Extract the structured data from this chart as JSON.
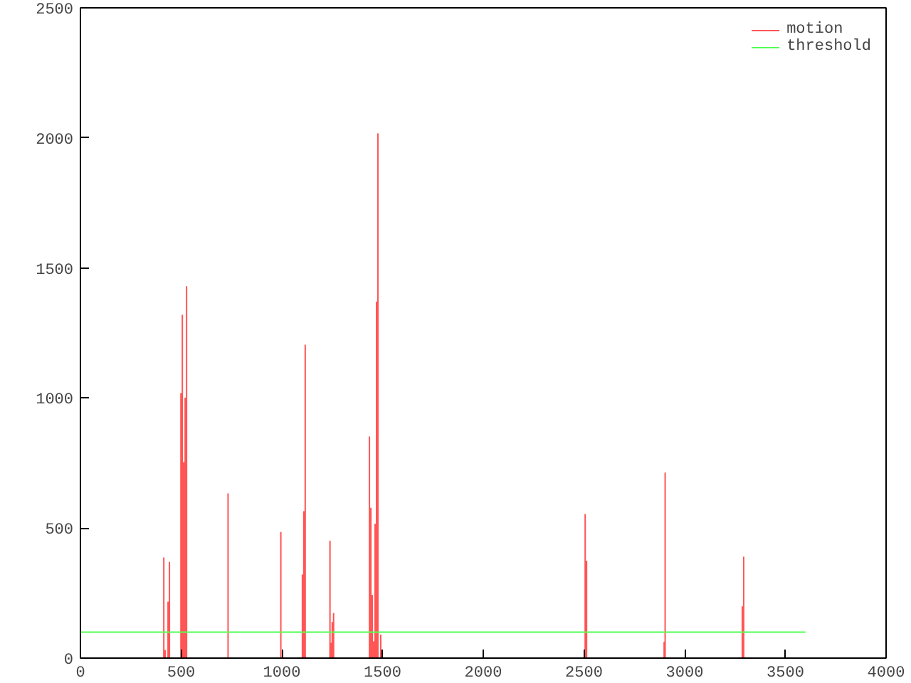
{
  "chart_data": {
    "type": "line",
    "xlim": [
      0,
      4000
    ],
    "ylim": [
      0,
      2500
    ],
    "xticks": [
      0,
      500,
      1000,
      1500,
      2000,
      2500,
      3000,
      3500,
      4000
    ],
    "yticks": [
      0,
      500,
      1000,
      1500,
      2000,
      2500
    ],
    "grid": false,
    "legend": "top right",
    "marker": "none",
    "line_style": "solid",
    "series": [
      {
        "name": "motion",
        "color": "#ff5555",
        "x": [
          0,
          414,
          414,
          414,
          421,
          421,
          421,
          435,
          435,
          435,
          442,
          442,
          442,
          499,
          499,
          499,
          506,
          506,
          506,
          513,
          513,
          513,
          520,
          520,
          520,
          527,
          527,
          527,
          733,
          733,
          733,
          995,
          995,
          995,
          1102,
          1102,
          1102,
          1109,
          1109,
          1109,
          1116,
          1116,
          1116,
          1239,
          1239,
          1239,
          1244,
          1244,
          1244,
          1250,
          1250,
          1250,
          1257,
          1257,
          1257,
          1435,
          1435,
          1435,
          1442,
          1442,
          1442,
          1449,
          1449,
          1449,
          1456,
          1456,
          1456,
          1463,
          1463,
          1463,
          1470,
          1470,
          1470,
          1477,
          1477,
          1477,
          1491,
          1491,
          1491,
          2506,
          2506,
          2506,
          2513,
          2513,
          2513,
          2898,
          2898,
          2898,
          2903,
          2903,
          2903,
          3286,
          3286,
          3286,
          3293,
          3293,
          3293,
          3600
        ],
        "values": [
          0,
          0,
          385,
          0,
          0,
          29,
          0,
          0,
          215,
          0,
          0,
          368,
          0,
          0,
          1017,
          0,
          0,
          1318,
          0,
          0,
          751,
          0,
          0,
          999,
          0,
          0,
          1428,
          0,
          0,
          631,
          0,
          0,
          483,
          0,
          0,
          319,
          0,
          0,
          563,
          0,
          0,
          1203,
          0,
          0,
          449,
          0,
          0,
          57,
          0,
          0,
          137,
          0,
          0,
          171,
          0,
          0,
          850,
          0,
          0,
          576,
          0,
          0,
          241,
          0,
          0,
          62,
          0,
          0,
          514,
          0,
          0,
          1368,
          0,
          0,
          2015,
          0,
          0,
          88,
          0,
          0,
          552,
          0,
          0,
          372,
          0,
          0,
          60,
          0,
          0,
          711,
          0,
          0,
          197,
          0,
          0,
          388,
          0,
          0
        ]
      },
      {
        "name": "threshold",
        "color": "#55ff55",
        "x": [
          0,
          3600
        ],
        "values": [
          100,
          100
        ]
      }
    ]
  }
}
